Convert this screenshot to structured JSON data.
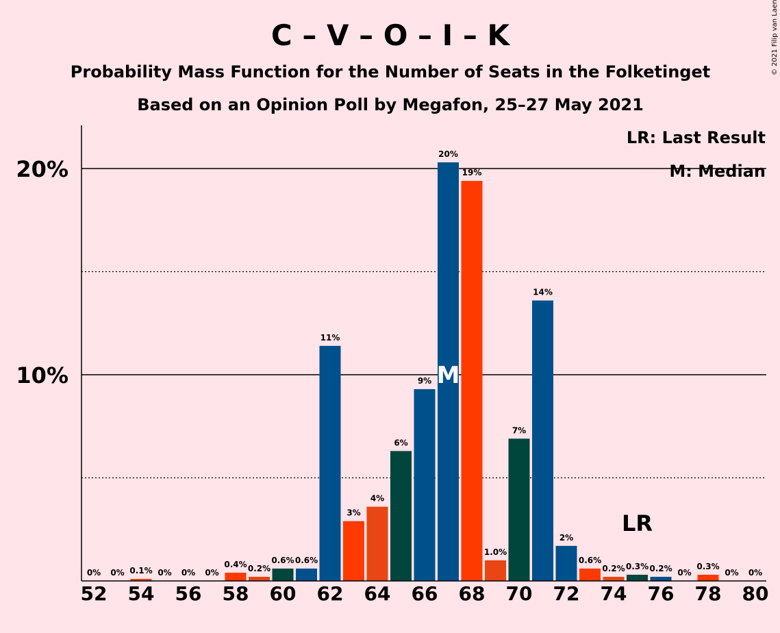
{
  "chart_data": {
    "type": "bar",
    "title": "C – V – O – I – K",
    "subtitle": "Probability Mass Function for the Number of Seats in the Folketinget",
    "subtitle2": "Based on an Opinion Poll by Megafon, 25–27 May 2021",
    "copyright": "© 2021 Filip van Laenen",
    "legend": {
      "lr": "LR: Last Result",
      "median": "M: Median"
    },
    "last_result_label": "LR",
    "median_label": "M",
    "x_tick_labels": [
      "52",
      "54",
      "56",
      "58",
      "60",
      "62",
      "64",
      "66",
      "68",
      "70",
      "72",
      "74",
      "76",
      "78",
      "80"
    ],
    "x_ticks": [
      52,
      54,
      56,
      58,
      60,
      62,
      64,
      66,
      68,
      70,
      72,
      74,
      76,
      78,
      80
    ],
    "y_ticks": [
      {
        "value": 10,
        "label": "10%"
      },
      {
        "value": 20,
        "label": "20%"
      }
    ],
    "ylim": [
      0,
      22
    ],
    "xlim": [
      51.5,
      80.5
    ],
    "median_seat": 67,
    "last_result_seat": 75,
    "colors": {
      "blue": "#00508c",
      "red": "#ff3a00",
      "orange": "#e84614",
      "green": "#00463c",
      "background": "#ffe4e9"
    },
    "bars": [
      {
        "seat": 52,
        "value": 0,
        "label": "0%",
        "color": "blue"
      },
      {
        "seat": 53,
        "value": 0,
        "label": "0%",
        "color": "red"
      },
      {
        "seat": 54,
        "value": 0.1,
        "label": "0.1%",
        "color": "orange"
      },
      {
        "seat": 55,
        "value": 0,
        "label": "0%",
        "color": "green"
      },
      {
        "seat": 56,
        "value": 0,
        "label": "0%",
        "color": "blue"
      },
      {
        "seat": 57,
        "value": 0,
        "label": "0%",
        "color": "blue"
      },
      {
        "seat": 58,
        "value": 0.4,
        "label": "0.4%",
        "color": "red"
      },
      {
        "seat": 59,
        "value": 0.2,
        "label": "0.2%",
        "color": "orange"
      },
      {
        "seat": 60,
        "value": 0.6,
        "label": "0.6%",
        "color": "green"
      },
      {
        "seat": 61,
        "value": 0.6,
        "label": "0.6%",
        "color": "blue"
      },
      {
        "seat": 62,
        "value": 11.4,
        "label": "11%",
        "color": "blue"
      },
      {
        "seat": 63,
        "value": 2.9,
        "label": "3%",
        "color": "red"
      },
      {
        "seat": 64,
        "value": 3.6,
        "label": "4%",
        "color": "orange"
      },
      {
        "seat": 65,
        "value": 6.3,
        "label": "6%",
        "color": "green"
      },
      {
        "seat": 66,
        "value": 9.3,
        "label": "9%",
        "color": "blue"
      },
      {
        "seat": 67,
        "value": 20.3,
        "label": "20%",
        "color": "blue"
      },
      {
        "seat": 68,
        "value": 19.4,
        "label": "19%",
        "color": "red"
      },
      {
        "seat": 69,
        "value": 1.0,
        "label": "1.0%",
        "color": "orange"
      },
      {
        "seat": 70,
        "value": 6.9,
        "label": "7%",
        "color": "green"
      },
      {
        "seat": 71,
        "value": 13.6,
        "label": "14%",
        "color": "blue"
      },
      {
        "seat": 72,
        "value": 1.7,
        "label": "2%",
        "color": "blue"
      },
      {
        "seat": 73,
        "value": 0.6,
        "label": "0.6%",
        "color": "red"
      },
      {
        "seat": 74,
        "value": 0.2,
        "label": "0.2%",
        "color": "orange"
      },
      {
        "seat": 75,
        "value": 0.3,
        "label": "0.3%",
        "color": "green"
      },
      {
        "seat": 76,
        "value": 0.2,
        "label": "0.2%",
        "color": "blue"
      },
      {
        "seat": 77,
        "value": 0,
        "label": "0%",
        "color": "blue"
      },
      {
        "seat": 78,
        "value": 0.3,
        "label": "0.3%",
        "color": "red"
      },
      {
        "seat": 79,
        "value": 0,
        "label": "0%",
        "color": "orange"
      },
      {
        "seat": 80,
        "value": 0,
        "label": "0%",
        "color": "green"
      }
    ]
  }
}
